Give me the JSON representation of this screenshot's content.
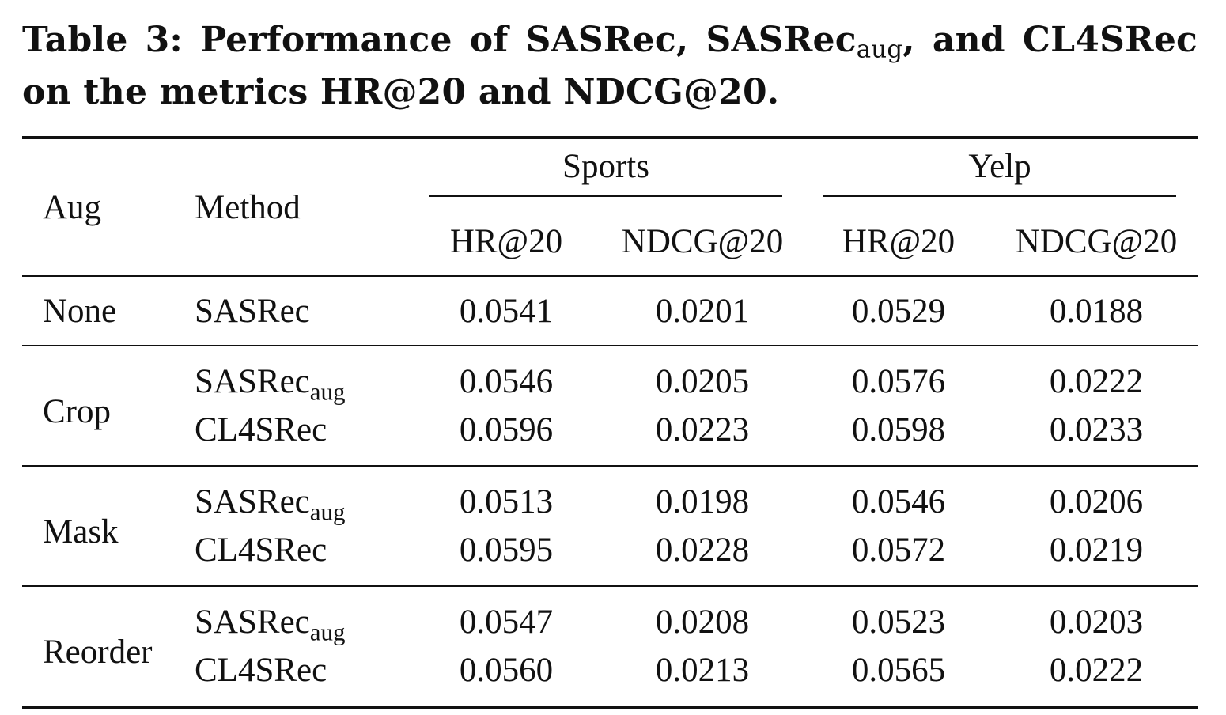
{
  "caption": {
    "label": "Table 3:",
    "text_a": "Performance of SASRec, SASRec",
    "text_a_sub": "aug",
    "text_b": ", and CL4SRec on the metrics HR@20 and NDCG@20."
  },
  "table": {
    "headers": {
      "aug": "Aug",
      "method": "Method",
      "groups": [
        "Sports",
        "Yelp"
      ],
      "metrics": [
        "HR@20",
        "NDCG@20",
        "HR@20",
        "NDCG@20"
      ]
    },
    "method_sub": "aug",
    "rows": [
      {
        "aug": "None",
        "method": "SASRec",
        "values": [
          "0.0541",
          "0.0201",
          "0.0529",
          "0.0188"
        ]
      },
      {
        "aug": "Crop",
        "method": "SASRec",
        "values": [
          "0.0546",
          "0.0205",
          "0.0576",
          "0.0222"
        ]
      },
      {
        "aug": "",
        "method": "CL4SRec",
        "values": [
          "0.0596",
          "0.0223",
          "0.0598",
          "0.0233"
        ]
      },
      {
        "aug": "Mask",
        "method": "SASRec",
        "values": [
          "0.0513",
          "0.0198",
          "0.0546",
          "0.0206"
        ]
      },
      {
        "aug": "",
        "method": "CL4SRec",
        "values": [
          "0.0595",
          "0.0228",
          "0.0572",
          "0.0219"
        ]
      },
      {
        "aug": "Reorder",
        "method": "SASRec",
        "values": [
          "0.0547",
          "0.0208",
          "0.0523",
          "0.0203"
        ]
      },
      {
        "aug": "",
        "method": "CL4SRec",
        "values": [
          "0.0560",
          "0.0213",
          "0.0565",
          "0.0222"
        ]
      }
    ]
  }
}
